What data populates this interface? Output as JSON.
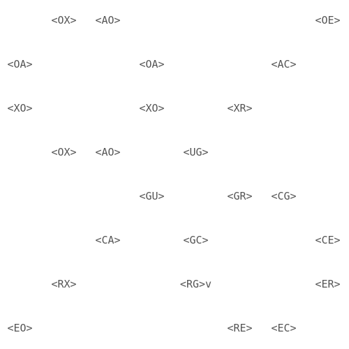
{
  "board": {
    "rows": 8,
    "cols": 8,
    "cells": [
      {
        "row": 0,
        "col": 1,
        "label": "<OX>"
      },
      {
        "row": 0,
        "col": 2,
        "label": "<AO>"
      },
      {
        "row": 0,
        "col": 7,
        "label": "<OE>"
      },
      {
        "row": 1,
        "col": 0,
        "label": "<OA>"
      },
      {
        "row": 1,
        "col": 3,
        "label": "<OA>"
      },
      {
        "row": 1,
        "col": 6,
        "label": "<AC>"
      },
      {
        "row": 2,
        "col": 0,
        "label": "<XO>"
      },
      {
        "row": 2,
        "col": 3,
        "label": "<XO>"
      },
      {
        "row": 2,
        "col": 5,
        "label": "<XR>"
      },
      {
        "row": 3,
        "col": 1,
        "label": "<OX>"
      },
      {
        "row": 3,
        "col": 2,
        "label": "<AO>"
      },
      {
        "row": 3,
        "col": 4,
        "label": "<UG>"
      },
      {
        "row": 4,
        "col": 3,
        "label": "<GU>"
      },
      {
        "row": 4,
        "col": 5,
        "label": "<GR>"
      },
      {
        "row": 4,
        "col": 6,
        "label": "<CG>"
      },
      {
        "row": 5,
        "col": 2,
        "label": "<CA>"
      },
      {
        "row": 5,
        "col": 4,
        "label": "<GC>"
      },
      {
        "row": 5,
        "col": 7,
        "label": "<CE>"
      },
      {
        "row": 6,
        "col": 1,
        "label": "<RX>"
      },
      {
        "row": 6,
        "col": 4,
        "label": "<RG>v"
      },
      {
        "row": 6,
        "col": 7,
        "label": "<ER>"
      },
      {
        "row": 7,
        "col": 0,
        "label": "<EO>"
      },
      {
        "row": 7,
        "col": 5,
        "label": "<RE>"
      },
      {
        "row": 7,
        "col": 6,
        "label": "<EC>"
      }
    ]
  }
}
